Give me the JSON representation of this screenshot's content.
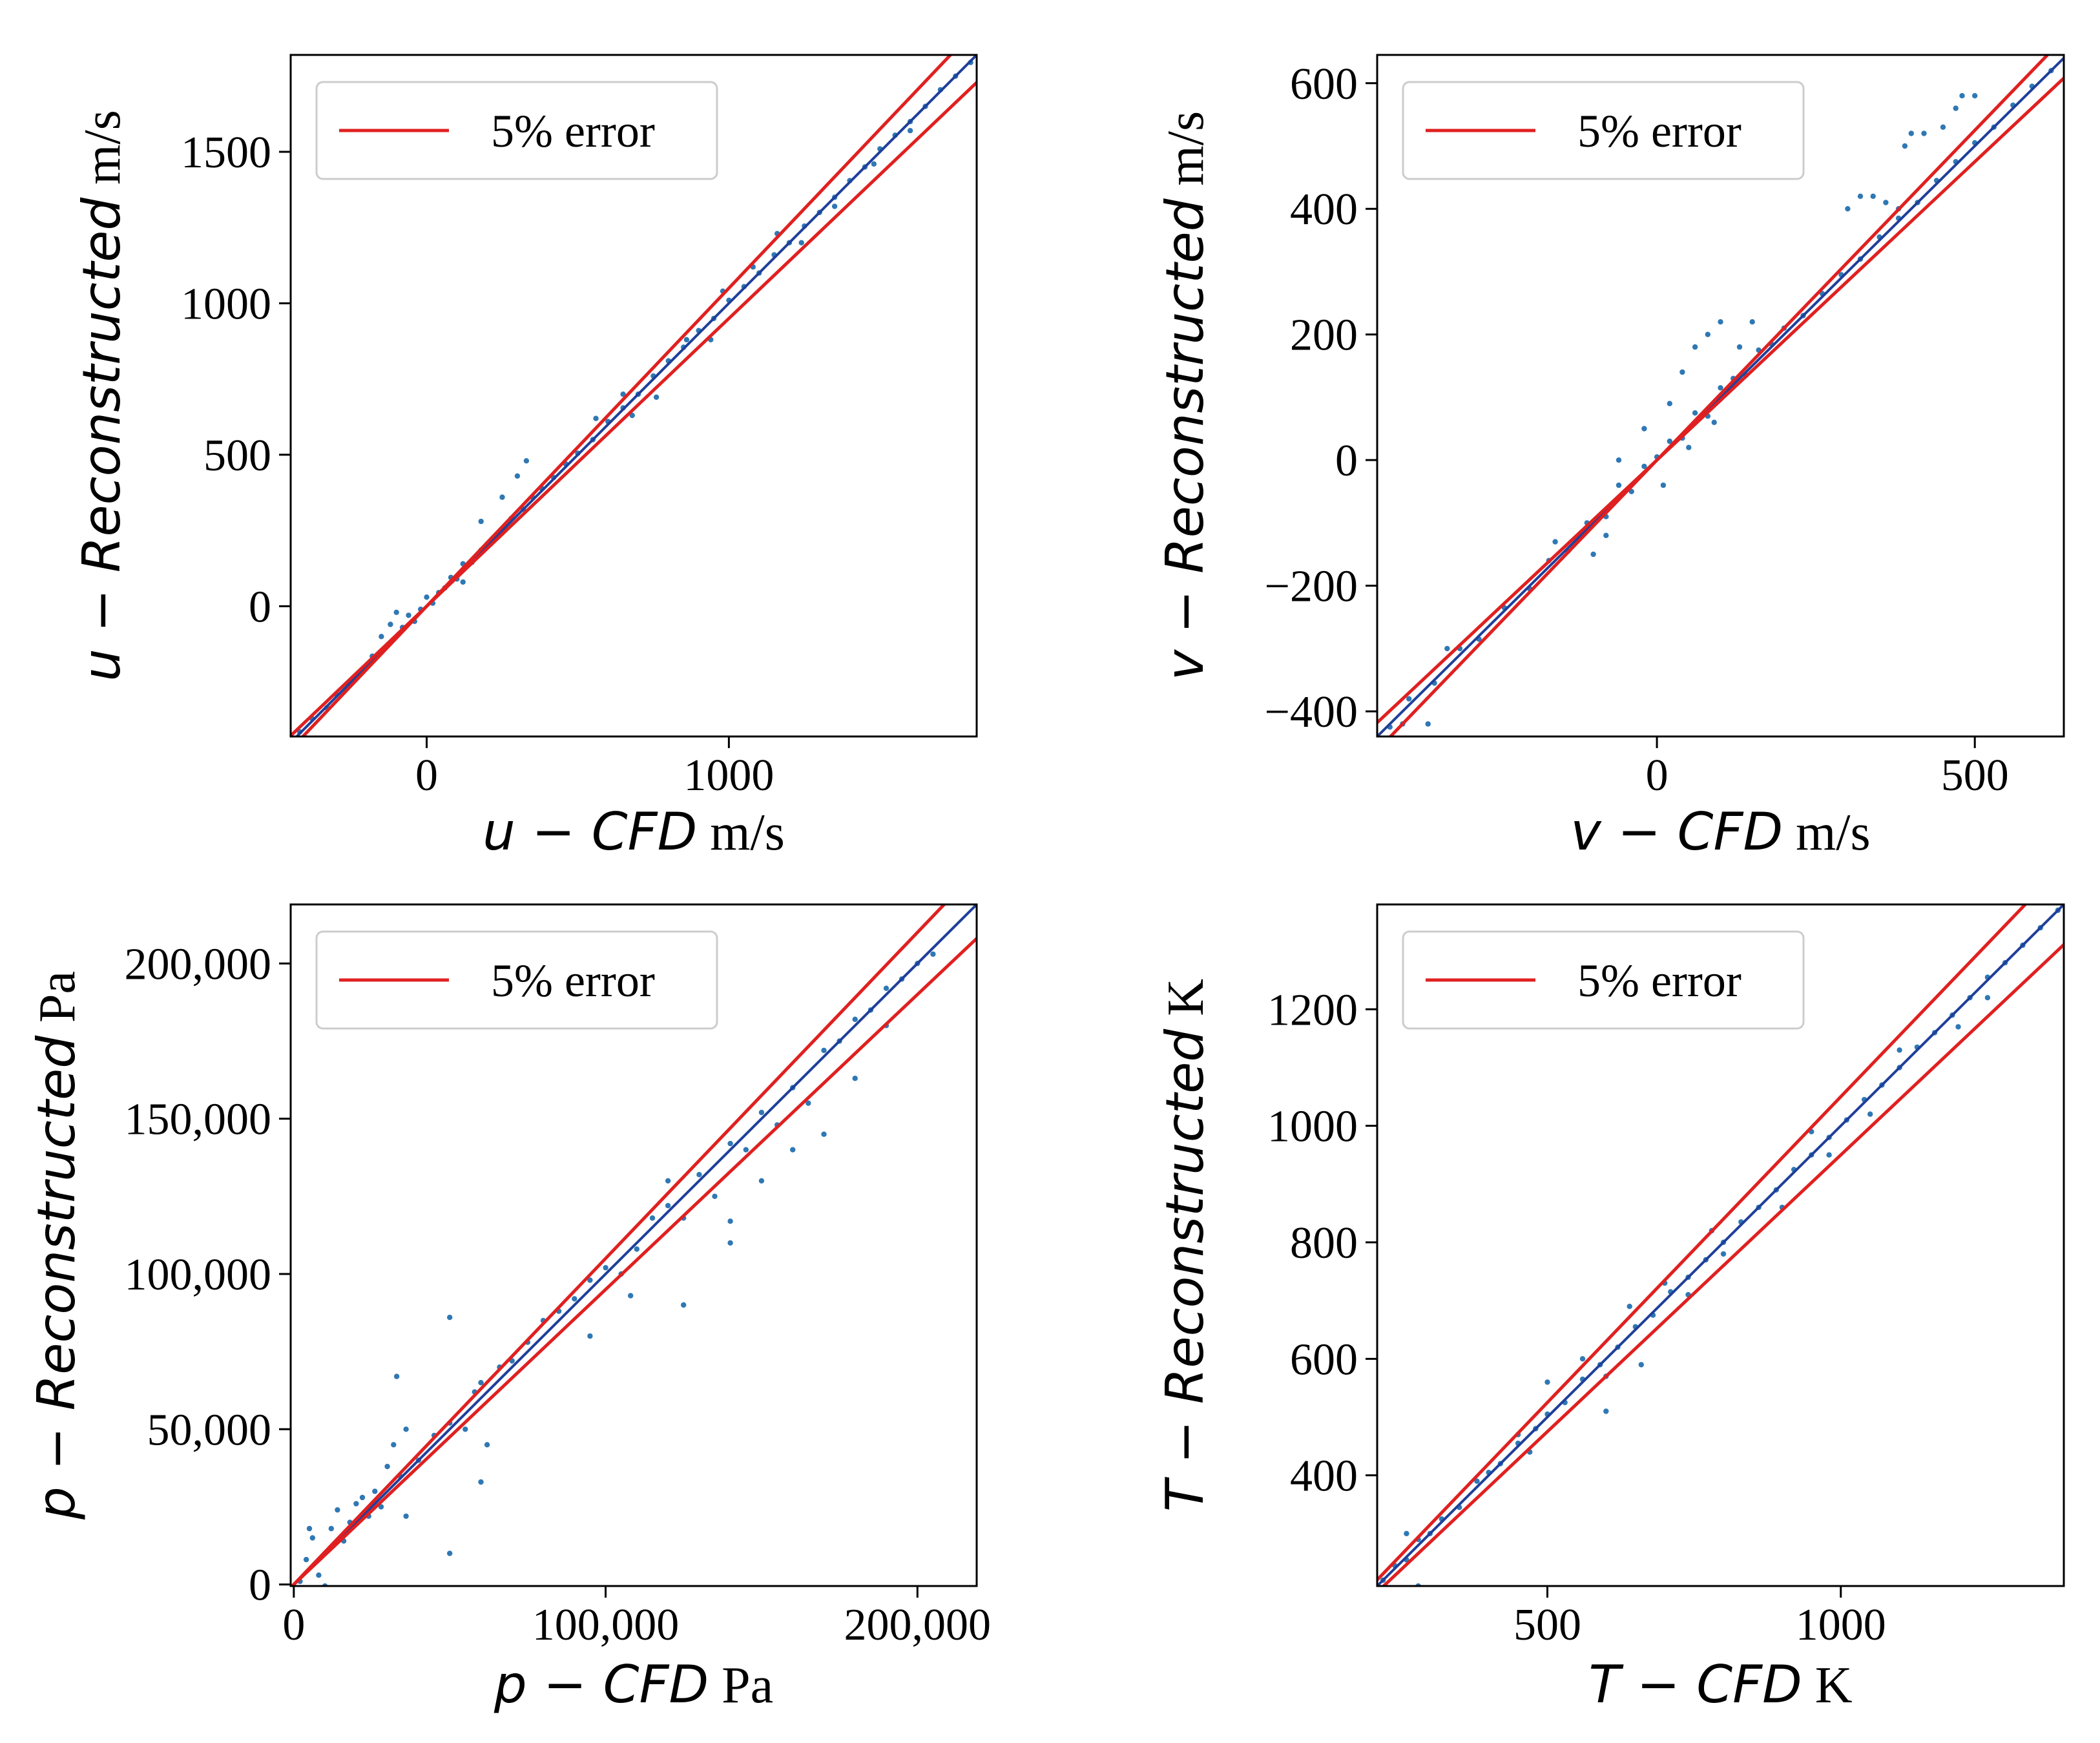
{
  "colors": {
    "points": "#2f78b4",
    "reference_line": "#1f3f9a",
    "error_band": "#e02020",
    "axis": "#000000",
    "legend_border": "#cccccc"
  },
  "chart_data": [
    {
      "type": "scatter",
      "panel": "u",
      "ylabel": {
        "prefix": "u − Reconstructed",
        "unit": "m/s"
      },
      "xlabel": {
        "prefix": "u − CFD",
        "unit": "m/s"
      },
      "xlim": [
        -450,
        1820
      ],
      "ylim": [
        -430,
        1820
      ],
      "xticks": [
        {
          "value": 0,
          "label": "0"
        },
        {
          "value": 1000,
          "label": "1000"
        }
      ],
      "yticks": [
        {
          "value": 0,
          "label": "0"
        },
        {
          "value": 500,
          "label": "500"
        },
        {
          "value": 1000,
          "label": "1000"
        },
        {
          "value": 1500,
          "label": "1500"
        }
      ],
      "legend": {
        "label": "5% error",
        "location": "upper-left"
      },
      "error_band_fraction": 0.05,
      "points": [
        [
          -420,
          -415
        ],
        [
          -380,
          -370
        ],
        [
          -330,
          -335
        ],
        [
          -300,
          -290
        ],
        [
          -260,
          -255
        ],
        [
          -220,
          -225
        ],
        [
          -180,
          -165
        ],
        [
          -150,
          -100
        ],
        [
          -120,
          -60
        ],
        [
          -100,
          -20
        ],
        [
          -80,
          -70
        ],
        [
          -60,
          -30
        ],
        [
          -40,
          -50
        ],
        [
          -20,
          -10
        ],
        [
          0,
          30
        ],
        [
          20,
          10
        ],
        [
          40,
          45
        ],
        [
          60,
          60
        ],
        [
          80,
          95
        ],
        [
          100,
          90
        ],
        [
          120,
          140
        ],
        [
          150,
          145
        ],
        [
          180,
          185
        ],
        [
          200,
          205
        ],
        [
          240,
          240
        ],
        [
          280,
          290
        ],
        [
          320,
          320
        ],
        [
          350,
          360
        ],
        [
          380,
          390
        ],
        [
          420,
          425
        ],
        [
          460,
          470
        ],
        [
          500,
          505
        ],
        [
          550,
          550
        ],
        [
          600,
          610
        ],
        [
          650,
          655
        ],
        [
          700,
          700
        ],
        [
          750,
          760
        ],
        [
          800,
          810
        ],
        [
          850,
          855
        ],
        [
          900,
          910
        ],
        [
          950,
          950
        ],
        [
          1000,
          1010
        ],
        [
          1050,
          1055
        ],
        [
          1100,
          1100
        ],
        [
          1150,
          1160
        ],
        [
          1200,
          1200
        ],
        [
          1250,
          1255
        ],
        [
          1300,
          1300
        ],
        [
          1350,
          1350
        ],
        [
          1400,
          1405
        ],
        [
          1450,
          1450
        ],
        [
          1500,
          1510
        ],
        [
          1550,
          1555
        ],
        [
          1600,
          1600
        ],
        [
          1650,
          1650
        ],
        [
          1700,
          1705
        ],
        [
          1750,
          1750
        ],
        [
          1800,
          1795
        ],
        [
          180,
          280
        ],
        [
          250,
          360
        ],
        [
          300,
          430
        ],
        [
          330,
          480
        ],
        [
          120,
          80
        ],
        [
          560,
          620
        ],
        [
          650,
          700
        ],
        [
          680,
          630
        ],
        [
          760,
          690
        ],
        [
          860,
          880
        ],
        [
          940,
          880
        ],
        [
          980,
          1040
        ],
        [
          1080,
          1120
        ],
        [
          1160,
          1230
        ],
        [
          1240,
          1200
        ],
        [
          1350,
          1320
        ],
        [
          1480,
          1460
        ],
        [
          1600,
          1570
        ]
      ]
    },
    {
      "type": "scatter",
      "panel": "v",
      "ylabel": {
        "prefix": "v − Reconstructed",
        "unit": "m/s"
      },
      "xlabel": {
        "prefix": "v − CFD",
        "unit": "m/s"
      },
      "xlim": [
        -440,
        640
      ],
      "ylim": [
        -440,
        645
      ],
      "xticks": [
        {
          "value": 0,
          "label": "0"
        },
        {
          "value": 500,
          "label": "500"
        }
      ],
      "yticks": [
        {
          "value": -400,
          "label": "−400"
        },
        {
          "value": -200,
          "label": "−200"
        },
        {
          "value": 0,
          "label": "0"
        },
        {
          "value": 200,
          "label": "200"
        },
        {
          "value": 400,
          "label": "400"
        },
        {
          "value": 600,
          "label": "600"
        }
      ],
      "legend": {
        "label": "5% error",
        "location": "upper-left"
      },
      "error_band_fraction": 0.05,
      "points": [
        [
          -420,
          -425
        ],
        [
          -390,
          -380
        ],
        [
          -350,
          -355
        ],
        [
          -310,
          -300
        ],
        [
          -280,
          -285
        ],
        [
          -240,
          -235
        ],
        [
          -200,
          -205
        ],
        [
          -170,
          -160
        ],
        [
          -140,
          -145
        ],
        [
          -110,
          -100
        ],
        [
          -80,
          -90
        ],
        [
          -60,
          -40
        ],
        [
          -40,
          -50
        ],
        [
          -20,
          -10
        ],
        [
          0,
          5
        ],
        [
          20,
          30
        ],
        [
          40,
          35
        ],
        [
          60,
          75
        ],
        [
          80,
          70
        ],
        [
          100,
          115
        ],
        [
          120,
          130
        ],
        [
          140,
          135
        ],
        [
          160,
          175
        ],
        [
          180,
          185
        ],
        [
          200,
          210
        ],
        [
          230,
          230
        ],
        [
          260,
          265
        ],
        [
          290,
          295
        ],
        [
          320,
          320
        ],
        [
          350,
          355
        ],
        [
          380,
          385
        ],
        [
          410,
          410
        ],
        [
          440,
          445
        ],
        [
          470,
          475
        ],
        [
          500,
          505
        ],
        [
          530,
          530
        ],
        [
          560,
          565
        ],
        [
          590,
          595
        ],
        [
          620,
          620
        ],
        [
          -60,
          0
        ],
        [
          -20,
          50
        ],
        [
          20,
          90
        ],
        [
          40,
          140
        ],
        [
          60,
          180
        ],
        [
          80,
          200
        ],
        [
          100,
          220
        ],
        [
          10,
          -40
        ],
        [
          50,
          20
        ],
        [
          90,
          60
        ],
        [
          130,
          180
        ],
        [
          150,
          220
        ],
        [
          -100,
          -150
        ],
        [
          -80,
          -120
        ],
        [
          300,
          400
        ],
        [
          320,
          420
        ],
        [
          340,
          420
        ],
        [
          360,
          410
        ],
        [
          380,
          400
        ],
        [
          390,
          500
        ],
        [
          400,
          520
        ],
        [
          420,
          520
        ],
        [
          450,
          530
        ],
        [
          470,
          560
        ],
        [
          480,
          580
        ],
        [
          500,
          580
        ],
        [
          -400,
          -420
        ],
        [
          -360,
          -420
        ],
        [
          -330,
          -300
        ],
        [
          -160,
          -130
        ]
      ]
    },
    {
      "type": "scatter",
      "panel": "p",
      "ylabel": {
        "prefix": "p − Reconstructed",
        "unit": "Pa"
      },
      "xlabel": {
        "prefix": "p − CFD",
        "unit": "Pa"
      },
      "xlim": [
        -1000,
        219000
      ],
      "ylim": [
        -500,
        219000
      ],
      "xticks": [
        {
          "value": 0,
          "label": "0"
        },
        {
          "value": 100000,
          "label": "100,000"
        },
        {
          "value": 200000,
          "label": "200,000"
        }
      ],
      "yticks": [
        {
          "value": 0,
          "label": "0"
        },
        {
          "value": 50000,
          "label": "50,000"
        },
        {
          "value": 100000,
          "label": "100,000"
        },
        {
          "value": 150000,
          "label": "150,000"
        },
        {
          "value": 200000,
          "label": "200,000"
        }
      ],
      "legend": {
        "label": "5% error",
        "location": "upper-left"
      },
      "error_band_fraction": 0.05,
      "points": [
        [
          2000,
          1000
        ],
        [
          4000,
          8000
        ],
        [
          6000,
          15000
        ],
        [
          8000,
          3000
        ],
        [
          10000,
          10000
        ],
        [
          12000,
          18000
        ],
        [
          14000,
          24000
        ],
        [
          16000,
          14000
        ],
        [
          18000,
          20000
        ],
        [
          20000,
          26000
        ],
        [
          22000,
          28000
        ],
        [
          24000,
          22000
        ],
        [
          26000,
          30000
        ],
        [
          28000,
          25000
        ],
        [
          30000,
          38000
        ],
        [
          32000,
          45000
        ],
        [
          34000,
          35000
        ],
        [
          36000,
          22000
        ],
        [
          36000,
          50000
        ],
        [
          40000,
          40000
        ],
        [
          45000,
          48000
        ],
        [
          50000,
          52000
        ],
        [
          55000,
          50000
        ],
        [
          58000,
          62000
        ],
        [
          60000,
          65000
        ],
        [
          62000,
          45000
        ],
        [
          66000,
          70000
        ],
        [
          70000,
          72000
        ],
        [
          75000,
          78000
        ],
        [
          80000,
          85000
        ],
        [
          85000,
          88000
        ],
        [
          90000,
          92000
        ],
        [
          95000,
          98000
        ],
        [
          100000,
          102000
        ],
        [
          105000,
          100000
        ],
        [
          110000,
          108000
        ],
        [
          115000,
          118000
        ],
        [
          120000,
          122000
        ],
        [
          125000,
          118000
        ],
        [
          130000,
          132000
        ],
        [
          135000,
          125000
        ],
        [
          140000,
          142000
        ],
        [
          145000,
          140000
        ],
        [
          150000,
          152000
        ],
        [
          155000,
          148000
        ],
        [
          160000,
          160000
        ],
        [
          165000,
          155000
        ],
        [
          170000,
          172000
        ],
        [
          175000,
          175000
        ],
        [
          180000,
          182000
        ],
        [
          185000,
          185000
        ],
        [
          190000,
          192000
        ],
        [
          195000,
          195000
        ],
        [
          200000,
          200000
        ],
        [
          205000,
          203000
        ],
        [
          50000,
          86000
        ],
        [
          33000,
          67000
        ],
        [
          60000,
          33000
        ],
        [
          50000,
          10000
        ],
        [
          140000,
          117000
        ],
        [
          140000,
          110000
        ],
        [
          150000,
          130000
        ],
        [
          180000,
          163000
        ],
        [
          190000,
          180000
        ],
        [
          170000,
          145000
        ],
        [
          160000,
          140000
        ],
        [
          125000,
          90000
        ],
        [
          95000,
          80000
        ],
        [
          10000,
          -500
        ],
        [
          5000,
          18000
        ],
        [
          120000,
          130000
        ],
        [
          108000,
          93000
        ]
      ]
    },
    {
      "type": "scatter",
      "panel": "T",
      "ylabel": {
        "prefix": "T − Reconstructed",
        "unit": "K"
      },
      "xlabel": {
        "prefix": "T − CFD",
        "unit": "K"
      },
      "xlim": [
        210,
        1380
      ],
      "ylim": [
        210,
        1380
      ],
      "xticks": [
        {
          "value": 500,
          "label": "500"
        },
        {
          "value": 1000,
          "label": "1000"
        }
      ],
      "yticks": [
        {
          "value": 400,
          "label": "400"
        },
        {
          "value": 600,
          "label": "600"
        },
        {
          "value": 800,
          "label": "800"
        },
        {
          "value": 1000,
          "label": "1000"
        },
        {
          "value": 1200,
          "label": "1200"
        }
      ],
      "legend": {
        "label": "5% error",
        "location": "upper-left"
      },
      "error_band_fraction": 0.05,
      "points": [
        [
          220,
          220
        ],
        [
          240,
          245
        ],
        [
          260,
          255
        ],
        [
          280,
          290
        ],
        [
          300,
          300
        ],
        [
          320,
          325
        ],
        [
          350,
          345
        ],
        [
          380,
          390
        ],
        [
          400,
          405
        ],
        [
          420,
          420
        ],
        [
          450,
          455
        ],
        [
          480,
          480
        ],
        [
          500,
          505
        ],
        [
          530,
          525
        ],
        [
          560,
          565
        ],
        [
          590,
          590
        ],
        [
          620,
          620
        ],
        [
          650,
          655
        ],
        [
          680,
          675
        ],
        [
          710,
          715
        ],
        [
          740,
          740
        ],
        [
          770,
          770
        ],
        [
          800,
          800
        ],
        [
          830,
          835
        ],
        [
          860,
          860
        ],
        [
          890,
          890
        ],
        [
          920,
          925
        ],
        [
          950,
          950
        ],
        [
          980,
          980
        ],
        [
          1010,
          1010
        ],
        [
          1040,
          1045
        ],
        [
          1070,
          1070
        ],
        [
          1100,
          1100
        ],
        [
          1130,
          1135
        ],
        [
          1160,
          1160
        ],
        [
          1190,
          1190
        ],
        [
          1220,
          1220
        ],
        [
          1250,
          1255
        ],
        [
          1280,
          1280
        ],
        [
          1310,
          1310
        ],
        [
          1340,
          1340
        ],
        [
          1370,
          1370
        ],
        [
          280,
          210
        ],
        [
          260,
          300
        ],
        [
          450,
          470
        ],
        [
          470,
          440
        ],
        [
          500,
          560
        ],
        [
          560,
          600
        ],
        [
          600,
          570
        ],
        [
          640,
          690
        ],
        [
          660,
          590
        ],
        [
          700,
          730
        ],
        [
          740,
          710
        ],
        [
          780,
          820
        ],
        [
          800,
          780
        ],
        [
          900,
          860
        ],
        [
          950,
          990
        ],
        [
          980,
          950
        ],
        [
          1050,
          1020
        ],
        [
          1100,
          1130
        ],
        [
          1200,
          1170
        ],
        [
          1250,
          1220
        ],
        [
          600,
          510
        ]
      ]
    }
  ]
}
